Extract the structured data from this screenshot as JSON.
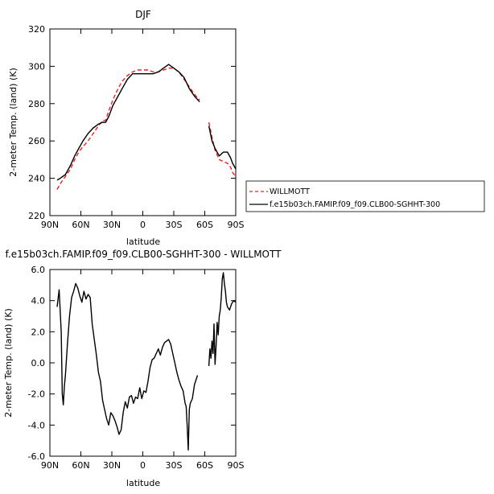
{
  "chart_data": [
    {
      "type": "line",
      "title": "DJF",
      "xlabel": "latitude",
      "ylabel": "2-meter Temp. (land) (K)",
      "xlim": [
        90,
        -90
      ],
      "ylim": [
        220,
        320
      ],
      "xticks": [
        90,
        60,
        30,
        0,
        -30,
        -60,
        -90
      ],
      "xtick_labels": [
        "90N",
        "60N",
        "30N",
        "0",
        "30S",
        "60S",
        "90S"
      ],
      "yticks": [
        220,
        240,
        260,
        280,
        300,
        320
      ],
      "ytick_labels": [
        "220",
        "240",
        "260",
        "280",
        "300",
        "320"
      ],
      "legend": "outside-right",
      "series": [
        {
          "name": "WILLMOTT",
          "color": "#e8212a",
          "dash": "dashed",
          "segments": [
            [
              [
                83,
                234
              ],
              [
                80,
                237
              ],
              [
                75,
                241
              ],
              [
                70,
                245
              ],
              [
                66,
                250
              ],
              [
                62,
                254
              ],
              [
                58,
                257
              ],
              [
                53,
                260
              ],
              [
                48,
                264
              ],
              [
                43,
                268
              ],
              [
                39,
                271
              ],
              [
                36,
                271
              ],
              [
                33,
                276
              ],
              [
                29,
                282
              ],
              [
                24,
                288
              ],
              [
                20,
                292
              ],
              [
                15,
                295
              ],
              [
                10,
                297
              ],
              [
                5,
                298
              ],
              [
                0,
                298
              ],
              [
                -5,
                298
              ],
              [
                -10,
                297
              ],
              [
                -15,
                297
              ],
              [
                -20,
                298
              ],
              [
                -25,
                299
              ],
              [
                -30,
                299
              ],
              [
                -35,
                297
              ],
              [
                -40,
                293
              ],
              [
                -45,
                289
              ],
              [
                -50,
                285
              ],
              [
                -55,
                282
              ]
            ],
            [
              [
                -64,
                270
              ],
              [
                -67,
                262
              ],
              [
                -70,
                255
              ],
              [
                -74,
                250
              ],
              [
                -78,
                249
              ],
              [
                -82,
                248
              ],
              [
                -85,
                246
              ],
              [
                -87,
                243
              ],
              [
                -90,
                241
              ]
            ]
          ]
        },
        {
          "name": "f.e15b03ch.FAMIP.f09_f09.CLB00-SGHHT-300",
          "color": "#000000",
          "dash": "solid",
          "segments": [
            [
              [
                83,
                239
              ],
              [
                80,
                240
              ],
              [
                75,
                242
              ],
              [
                70,
                247
              ],
              [
                66,
                252
              ],
              [
                62,
                256
              ],
              [
                58,
                260
              ],
              [
                53,
                264
              ],
              [
                48,
                267
              ],
              [
                43,
                269
              ],
              [
                39,
                270
              ],
              [
                36,
                270
              ],
              [
                33,
                273
              ],
              [
                29,
                279
              ],
              [
                24,
                284
              ],
              [
                20,
                288
              ],
              [
                15,
                293
              ],
              [
                10,
                296
              ],
              [
                5,
                296
              ],
              [
                0,
                296
              ],
              [
                -5,
                296
              ],
              [
                -10,
                296
              ],
              [
                -15,
                297
              ],
              [
                -20,
                299
              ],
              [
                -25,
                301
              ],
              [
                -30,
                299
              ],
              [
                -35,
                297
              ],
              [
                -40,
                294
              ],
              [
                -45,
                288
              ],
              [
                -50,
                284
              ],
              [
                -55,
                281
              ]
            ],
            [
              [
                -64,
                268
              ],
              [
                -67,
                260
              ],
              [
                -70,
                256
              ],
              [
                -74,
                252
              ],
              [
                -78,
                254
              ],
              [
                -82,
                254
              ],
              [
                -85,
                251
              ],
              [
                -87,
                248
              ],
              [
                -90,
                245
              ]
            ]
          ]
        }
      ]
    },
    {
      "type": "line",
      "title": "f.e15b03ch.FAMIP.f09_f09.CLB00-SGHHT-300 - WILLMOTT",
      "xlabel": "latitude",
      "ylabel": "2-meter Temp. (land) (K)",
      "xlim": [
        90,
        -90
      ],
      "ylim": [
        -6.0,
        6.0
      ],
      "xticks": [
        90,
        60,
        30,
        0,
        -30,
        -60,
        -90
      ],
      "xtick_labels": [
        "90N",
        "60N",
        "30N",
        "0",
        "30S",
        "60S",
        "90S"
      ],
      "yticks": [
        -6.0,
        -4.0,
        -2.0,
        0.0,
        2.0,
        4.0,
        6.0
      ],
      "ytick_labels": [
        "-6.0",
        "-4.0",
        "-2.0",
        "0.0",
        "2.0",
        "4.0",
        "6.0"
      ],
      "series": [
        {
          "name": "",
          "color": "#000000",
          "dash": "solid",
          "segments": [
            [
              [
                83,
                3.6
              ],
              [
                81,
                4.7
              ],
              [
                79,
                2.0
              ],
              [
                78,
                -2.0
              ],
              [
                77,
                -2.7
              ],
              [
                76,
                -1.5
              ],
              [
                75,
                -0.8
              ],
              [
                73,
                1.2
              ],
              [
                71,
                3.0
              ],
              [
                69,
                4.2
              ],
              [
                67,
                4.6
              ],
              [
                65,
                5.1
              ],
              [
                63,
                4.8
              ],
              [
                61,
                4.3
              ],
              [
                59,
                3.9
              ],
              [
                57,
                4.6
              ],
              [
                55,
                4.1
              ],
              [
                53,
                4.4
              ],
              [
                51,
                4.2
              ],
              [
                49,
                2.5
              ],
              [
                47,
                1.5
              ],
              [
                45,
                0.5
              ],
              [
                43,
                -0.6
              ],
              [
                41,
                -1.2
              ],
              [
                39,
                -2.4
              ],
              [
                37,
                -3.0
              ],
              [
                35,
                -3.6
              ],
              [
                33,
                -4.0
              ],
              [
                31,
                -3.2
              ],
              [
                29,
                -3.4
              ],
              [
                27,
                -3.7
              ],
              [
                25,
                -4.1
              ],
              [
                23,
                -4.6
              ],
              [
                21,
                -4.3
              ],
              [
                19,
                -3.2
              ],
              [
                17,
                -2.5
              ],
              [
                15,
                -2.9
              ],
              [
                13,
                -2.2
              ],
              [
                11,
                -2.1
              ],
              [
                9,
                -2.6
              ],
              [
                7,
                -2.2
              ],
              [
                5,
                -2.3
              ],
              [
                3,
                -1.6
              ],
              [
                1,
                -2.3
              ],
              [
                -1,
                -1.8
              ],
              [
                -3,
                -1.9
              ],
              [
                -5,
                -1.2
              ],
              [
                -7,
                -0.3
              ],
              [
                -9,
                0.2
              ],
              [
                -11,
                0.3
              ],
              [
                -13,
                0.6
              ],
              [
                -15,
                0.9
              ],
              [
                -17,
                0.5
              ],
              [
                -19,
                1.0
              ],
              [
                -21,
                1.3
              ],
              [
                -23,
                1.4
              ],
              [
                -25,
                1.5
              ],
              [
                -27,
                1.2
              ],
              [
                -29,
                0.6
              ],
              [
                -31,
                0.0
              ],
              [
                -33,
                -0.6
              ],
              [
                -35,
                -1.1
              ],
              [
                -37,
                -1.5
              ],
              [
                -39,
                -1.8
              ],
              [
                -41,
                -2.6
              ],
              [
                -42,
                -2.8
              ],
              [
                -43,
                -4.1
              ],
              [
                -44,
                -5.6
              ],
              [
                -45,
                -3.0
              ],
              [
                -46,
                -2.6
              ],
              [
                -48,
                -2.3
              ],
              [
                -50,
                -1.4
              ],
              [
                -53,
                -0.8
              ]
            ],
            [
              [
                -64,
                -0.2
              ],
              [
                -65,
                0.9
              ],
              [
                -66,
                0.3
              ],
              [
                -67,
                1.4
              ],
              [
                -68,
                0.6
              ],
              [
                -69,
                2.5
              ],
              [
                -70,
                -0.1
              ],
              [
                -71,
                1.1
              ],
              [
                -72,
                2.6
              ],
              [
                -73,
                1.8
              ],
              [
                -74,
                3.0
              ],
              [
                -75,
                3.4
              ],
              [
                -76,
                4.2
              ],
              [
                -77,
                5.4
              ],
              [
                -78,
                5.8
              ],
              [
                -79,
                5.1
              ],
              [
                -80,
                4.6
              ],
              [
                -81,
                3.9
              ],
              [
                -82,
                3.6
              ],
              [
                -84,
                3.4
              ],
              [
                -86,
                3.8
              ],
              [
                -88,
                4.0
              ],
              [
                -90,
                3.9
              ]
            ]
          ]
        }
      ]
    }
  ]
}
